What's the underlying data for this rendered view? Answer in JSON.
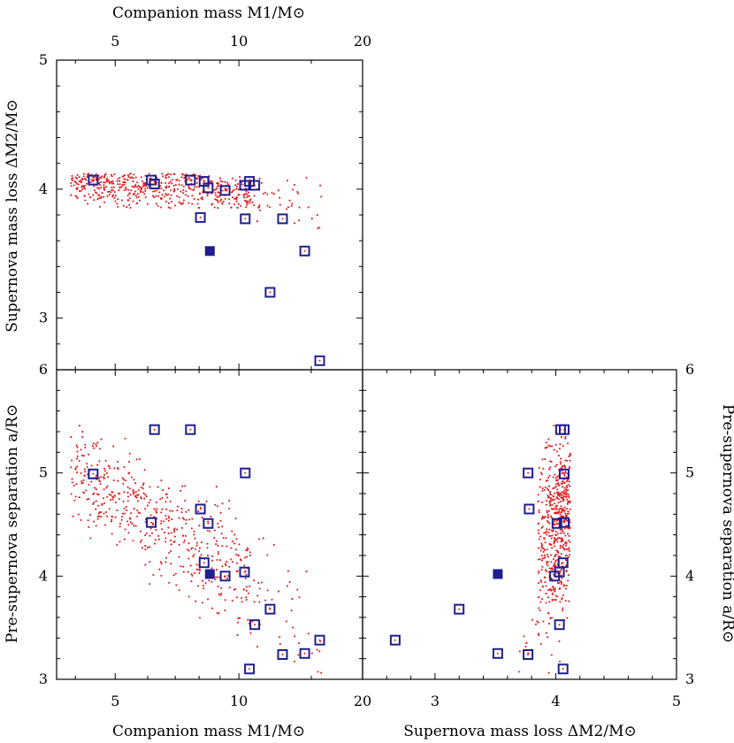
{
  "chart_data": {
    "type": "scatter",
    "labels": {
      "x_mass_top": "Companion mass M1/M⊙",
      "x_mass_bottom": "Companion mass M1/M⊙",
      "x_loss_bottom": "Supernova mass loss ΔM2/M⊙",
      "y_loss_left": "Supernova mass loss ΔM2/M⊙",
      "y_sep_left": "Pre-supernova separation a/R⊙",
      "y_sep_right": "Pre-supernova separation a/R⊙"
    },
    "axes": {
      "mass": {
        "scale": "log",
        "range": [
          3.6,
          20
        ],
        "ticks": [
          "5",
          "10",
          "20"
        ],
        "tick_values": [
          5,
          10,
          20
        ]
      },
      "loss": {
        "scale": "linear",
        "range": [
          2.4,
          5
        ],
        "ticks": [
          "3",
          "4",
          "5"
        ],
        "tick_values": [
          3,
          4,
          5
        ]
      },
      "loss_y": {
        "scale": "linear",
        "range": [
          2.6,
          5
        ],
        "ticks": [
          "3",
          "4",
          "5"
        ],
        "tick_values": [
          3,
          4,
          5
        ]
      },
      "sep": {
        "scale": "linear",
        "range": [
          3,
          6
        ],
        "ticks": [
          "3",
          "4",
          "5",
          "6"
        ],
        "tick_values": [
          3,
          4,
          5,
          6
        ]
      }
    },
    "colors": {
      "cloud": "#e41a1c",
      "marker": "#1f1f8f"
    },
    "highlighted": [
      {
        "mass": 4.42,
        "loss": 4.07,
        "sep": 4.99
      },
      {
        "mass": 6.12,
        "loss": 4.07,
        "sep": 4.52
      },
      {
        "mass": 6.23,
        "loss": 4.04,
        "sep": 5.42
      },
      {
        "mass": 7.62,
        "loss": 4.07,
        "sep": 5.42
      },
      {
        "mass": 8.06,
        "loss": 3.78,
        "sep": 4.65
      },
      {
        "mass": 8.23,
        "loss": 4.06,
        "sep": 4.13
      },
      {
        "mass": 8.42,
        "loss": 4.01,
        "sep": 4.51
      },
      {
        "mass": 9.26,
        "loss": 3.99,
        "sep": 4.0
      },
      {
        "mass": 10.32,
        "loss": 4.03,
        "sep": 4.04
      },
      {
        "mass": 10.36,
        "loss": 3.77,
        "sep": 5.0
      },
      {
        "mass": 10.61,
        "loss": 4.06,
        "sep": 3.1
      },
      {
        "mass": 10.93,
        "loss": 4.03,
        "sep": 3.53
      },
      {
        "mass": 11.91,
        "loss": 3.2,
        "sep": 3.68
      },
      {
        "mass": 12.77,
        "loss": 3.77,
        "sep": 3.24
      },
      {
        "mass": 14.46,
        "loss": 3.52,
        "sep": 3.25
      },
      {
        "mass": 15.73,
        "loss": 2.67,
        "sep": 3.38
      }
    ],
    "reference": {
      "mass": 8.5,
      "loss": 3.52,
      "sep": 4.02
    },
    "cloud": {
      "count": 560,
      "seed": 7,
      "mass_range": [
        3.9,
        16.0
      ],
      "loss_max": 4.12,
      "sep_range": [
        3.06,
        5.52
      ]
    }
  }
}
